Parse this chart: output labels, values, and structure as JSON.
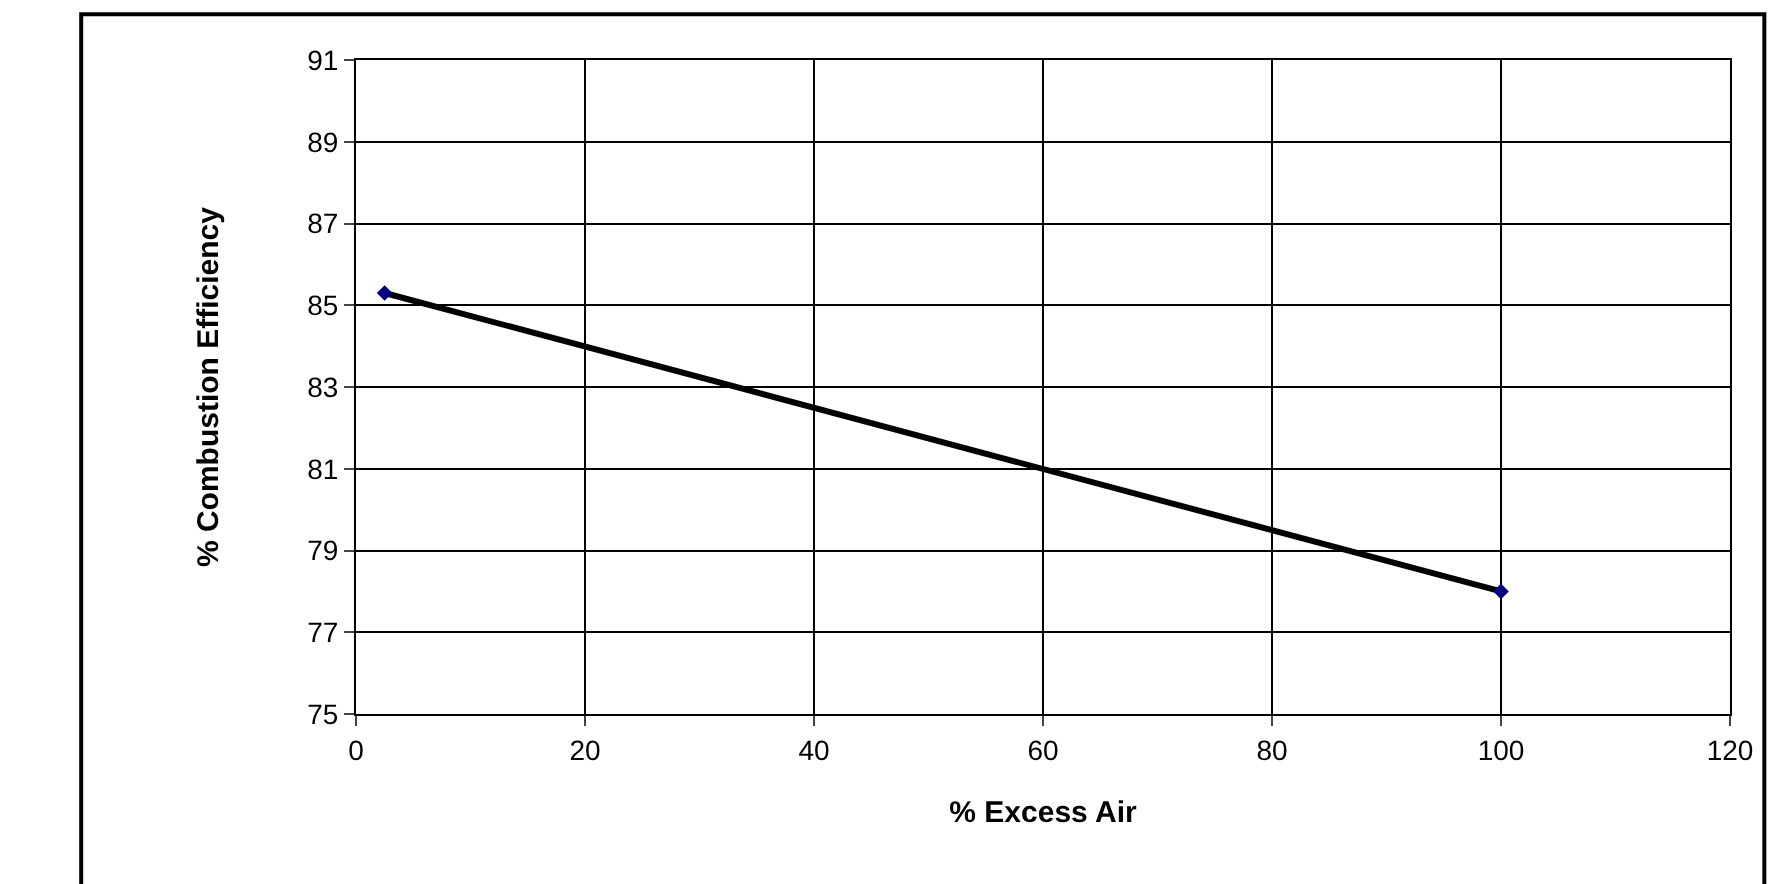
{
  "chart_data": {
    "type": "line",
    "xlabel": "% Excess Air",
    "ylabel": "% Combustion Efficiency",
    "x": [
      2.5,
      100
    ],
    "series": [
      {
        "color": "#000000",
        "values": [
          85.3,
          78
        ]
      }
    ],
    "xlim": [
      0,
      120
    ],
    "xticks": [
      0,
      20,
      40,
      60,
      80,
      100,
      120
    ],
    "ylim": [
      75,
      91
    ],
    "yticks": [
      75,
      77,
      79,
      81,
      83,
      85,
      87,
      89,
      91
    ],
    "grid": true,
    "legend": false,
    "marker": "diamond",
    "line_style": "solid"
  }
}
